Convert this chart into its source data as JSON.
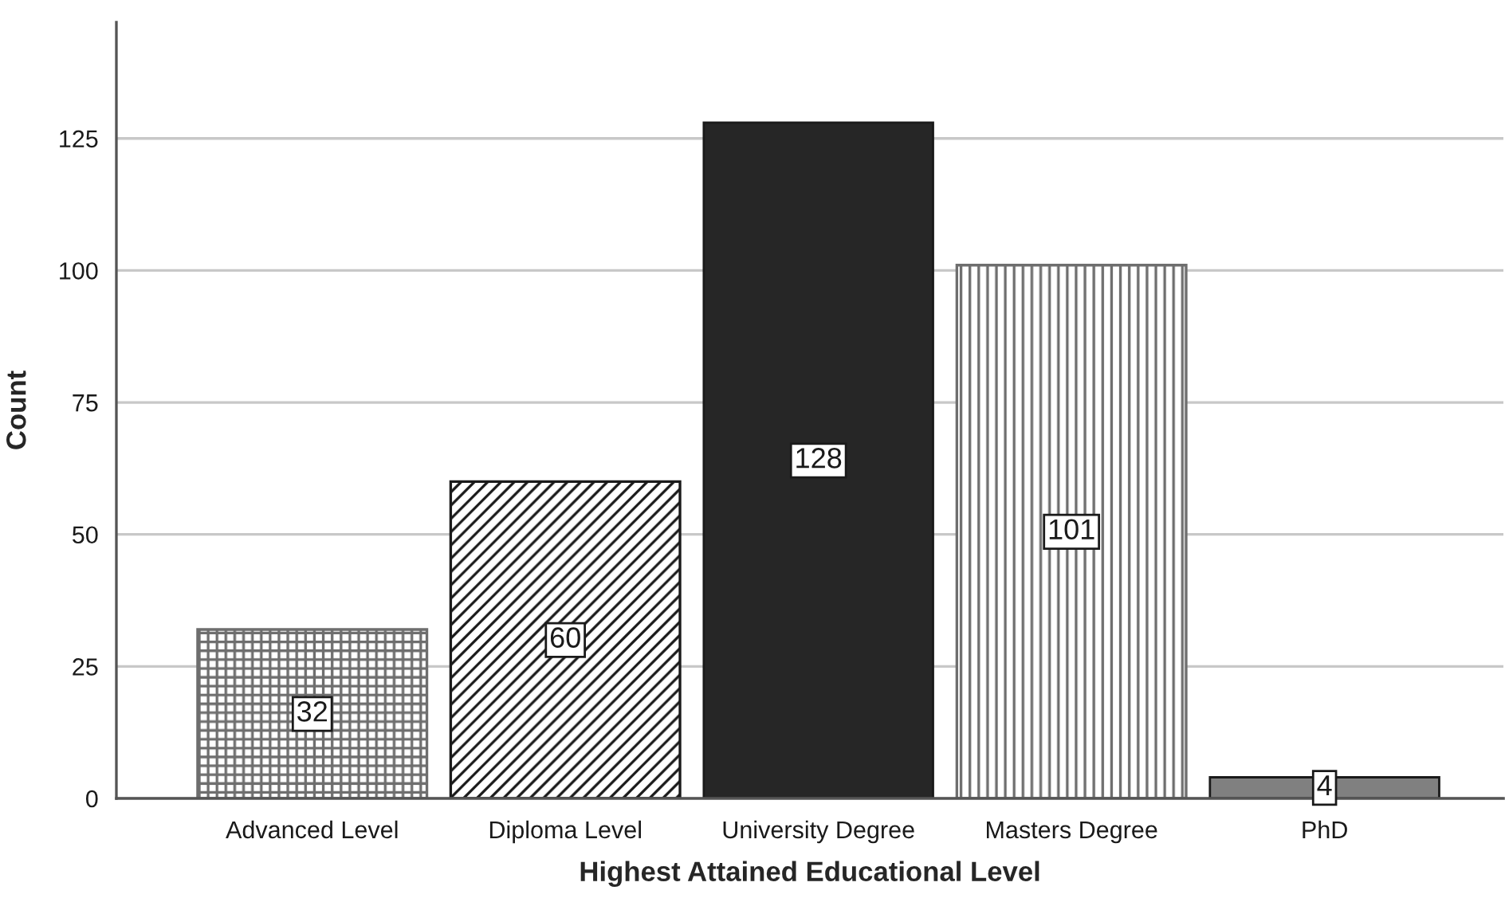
{
  "chart_data": {
    "type": "bar",
    "xlabel": "Highest Attained Educational Level",
    "ylabel": "Count",
    "categories": [
      "Advanced Level",
      "Diploma Level",
      "University Degree",
      "Masters Degree",
      "PhD"
    ],
    "values": [
      32,
      60,
      128,
      101,
      4
    ],
    "colors": [
      "#6e6e6e",
      "#1a1a1a",
      "#262626",
      "#6e6e6e",
      "#808080"
    ],
    "ylim": [
      0,
      147
    ],
    "yticks": [
      0,
      25,
      50,
      75,
      100,
      125
    ],
    "grid": "y",
    "data_labels": true
  }
}
